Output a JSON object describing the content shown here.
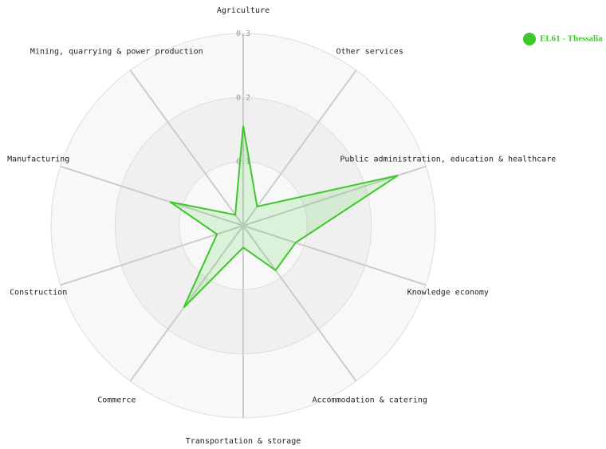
{
  "chart_data": {
    "type": "radar",
    "categories": [
      "Agriculture",
      "Other services",
      "Public administration, education & healthcare",
      "Knowledge economy",
      "Accommodation & catering",
      "Transportation & storage",
      "Commerce",
      "Construction",
      "Manufacturing",
      "Mining, quarrying & power production"
    ],
    "series": [
      {
        "name": "EL61 - Thessalia",
        "color": "#3cc82a",
        "values": [
          0.156,
          0.037,
          0.254,
          0.086,
          0.086,
          0.034,
          0.158,
          0.043,
          0.12,
          0.021
        ]
      }
    ],
    "rlim": [
      0,
      0.3
    ],
    "rticks": [
      0.1,
      0.2,
      0.3
    ],
    "legend": "top-right"
  }
}
